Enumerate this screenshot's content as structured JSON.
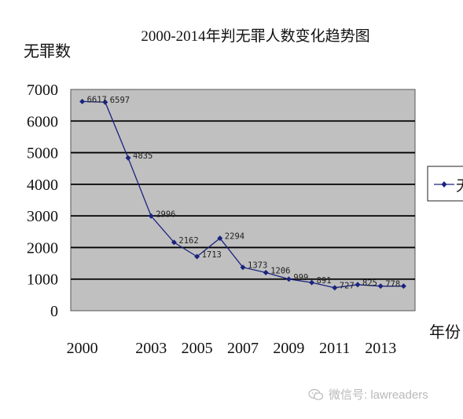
{
  "chart_data": {
    "type": "line",
    "title": "2000-2014年判无罪人数变化趋势图",
    "ylabel": "无罪数",
    "xlabel": "年份",
    "ylim": [
      0,
      7000
    ],
    "yticks": [
      0,
      1000,
      2000,
      3000,
      4000,
      5000,
      6000,
      7000
    ],
    "xticks": [
      "2000",
      "2003",
      "2005",
      "2007",
      "2009",
      "2011",
      "2013"
    ],
    "x": [
      2000,
      2001,
      2002,
      2003,
      2004,
      2005,
      2006,
      2007,
      2008,
      2009,
      2010,
      2011,
      2012,
      2013,
      2014
    ],
    "series": [
      {
        "name": "无",
        "values": [
          6617,
          6597,
          4835,
          2996,
          2162,
          1713,
          2294,
          1373,
          1206,
          999,
          891,
          727,
          825,
          778,
          778
        ],
        "labels": [
          "6617",
          "6597",
          "4835",
          "2996",
          "2162",
          "1713",
          "2294",
          "1373",
          "1206",
          "999",
          "891",
          "727",
          "825",
          "778",
          ""
        ]
      }
    ],
    "grid": true,
    "legend_position": "right",
    "colors": {
      "line": "#1a237e",
      "plot_bg": "#c0c0c0",
      "grid": "#000000"
    }
  },
  "watermark": {
    "text": "微信号: lawreaders",
    "icon": "wechat-icon"
  }
}
